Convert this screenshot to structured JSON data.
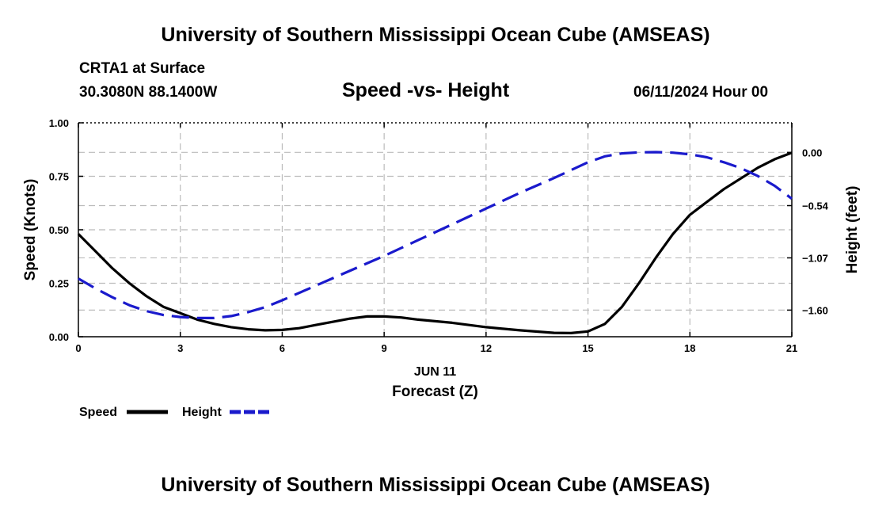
{
  "header": {
    "title": "University of Southern Mississippi Ocean Cube (AMSEAS)",
    "station": "CRTA1 at Surface",
    "coords": "30.3080N  88.1400W",
    "datetime": "06/11/2024 Hour 00"
  },
  "footer": {
    "title": "University of Southern Mississippi Ocean Cube (AMSEAS)"
  },
  "chart_data": {
    "type": "line",
    "title": "Speed -vs- Height",
    "xlabel": "Forecast (Z)",
    "date_label": "JUN 11",
    "ylabel_left": "Speed (Knots)",
    "ylabel_right": "Height (feet)",
    "xlim": [
      0,
      21
    ],
    "ylim_left": [
      0,
      1.0
    ],
    "ylim_right": [
      -1.87,
      0.3
    ],
    "x_ticks": [
      0,
      3,
      6,
      9,
      12,
      15,
      18,
      21
    ],
    "x_tick_labels": [
      "0",
      "3",
      "6",
      "9",
      "12",
      "15",
      "18",
      "21"
    ],
    "y_left_ticks": [
      0,
      0.25,
      0.5,
      0.75,
      1.0
    ],
    "y_left_tick_labels": [
      "0.00",
      "0.25",
      "0.50",
      "0.75",
      "1.00"
    ],
    "y_right_ticks": [
      -1.6,
      -1.07,
      -0.54,
      0.0
    ],
    "y_right_tick_labels": [
      "−1.60",
      "−1.07",
      "−0.54",
      "0.00"
    ],
    "grid": true,
    "legend_position": "bottom-left",
    "series": [
      {
        "name": "Speed",
        "axis": "left",
        "color": "#000000",
        "style": "solid",
        "x": [
          0,
          0.5,
          1,
          1.5,
          2,
          2.5,
          3,
          3.5,
          4,
          4.5,
          5,
          5.5,
          6,
          6.5,
          7,
          7.5,
          8,
          8.5,
          9,
          9.5,
          10,
          11,
          12,
          13,
          14,
          14.5,
          15,
          15.5,
          16,
          16.5,
          17,
          17.5,
          18,
          18.5,
          19,
          19.5,
          20,
          20.5,
          21
        ],
        "values": [
          0.48,
          0.4,
          0.32,
          0.25,
          0.19,
          0.14,
          0.11,
          0.08,
          0.06,
          0.045,
          0.035,
          0.03,
          0.032,
          0.04,
          0.055,
          0.07,
          0.085,
          0.095,
          0.095,
          0.09,
          0.08,
          0.065,
          0.045,
          0.03,
          0.018,
          0.017,
          0.025,
          0.06,
          0.14,
          0.25,
          0.37,
          0.48,
          0.57,
          0.63,
          0.69,
          0.74,
          0.79,
          0.83,
          0.86
        ]
      },
      {
        "name": "Height",
        "axis": "right",
        "color": "#1a1acc",
        "style": "dashed",
        "x": [
          0,
          0.5,
          1,
          1.5,
          2,
          2.5,
          3,
          3.5,
          4,
          4.5,
          5,
          5.5,
          6,
          7,
          8,
          9,
          10,
          11,
          12,
          13,
          14,
          15,
          15.5,
          16,
          16.5,
          17,
          17.5,
          18,
          18.5,
          19,
          19.5,
          20,
          20.5,
          21
        ],
        "values": [
          -1.28,
          -1.38,
          -1.47,
          -1.55,
          -1.61,
          -1.65,
          -1.67,
          -1.68,
          -1.68,
          -1.66,
          -1.62,
          -1.57,
          -1.5,
          -1.35,
          -1.2,
          -1.05,
          -0.89,
          -0.73,
          -0.57,
          -0.41,
          -0.26,
          -0.1,
          -0.04,
          -0.01,
          0.0,
          0.003,
          -0.003,
          -0.02,
          -0.05,
          -0.1,
          -0.16,
          -0.24,
          -0.34,
          -0.47
        ]
      }
    ]
  }
}
